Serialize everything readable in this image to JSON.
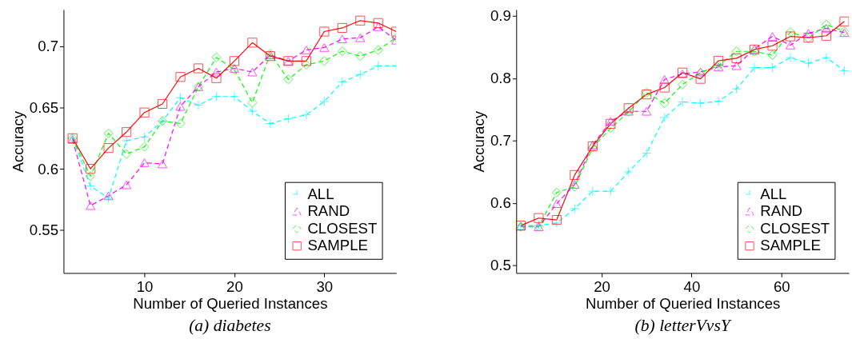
{
  "chart_data": [
    {
      "type": "line",
      "title": "(a) diabetes",
      "xlabel": "Number of Queried Instances",
      "ylabel": "Accuracy",
      "x": [
        2,
        4,
        6,
        8,
        10,
        12,
        14,
        16,
        18,
        20,
        22,
        24,
        26,
        28,
        30,
        32,
        34,
        36,
        38
      ],
      "xlim": [
        1,
        38
      ],
      "xticks": [
        10,
        20,
        30
      ],
      "ylim": [
        0.515,
        0.73
      ],
      "yticks": [
        0.55,
        0.6,
        0.65,
        0.7
      ],
      "grid": false,
      "legend": "bottom right",
      "series": [
        {
          "name": "ALL",
          "color": "#00ffff",
          "marker": "cross",
          "line_style": "dashed",
          "values": [
            0.625,
            0.586,
            0.576,
            0.623,
            0.626,
            0.639,
            0.658,
            0.652,
            0.659,
            0.659,
            0.647,
            0.637,
            0.641,
            0.644,
            0.655,
            0.671,
            0.677,
            0.684,
            0.684
          ]
        },
        {
          "name": "RAND",
          "color": "#ff00ff",
          "marker": "triangle",
          "line_style": "dashed",
          "values": [
            0.624,
            0.57,
            0.578,
            0.587,
            0.605,
            0.604,
            0.651,
            0.667,
            0.679,
            0.682,
            0.679,
            0.693,
            0.688,
            0.697,
            0.699,
            0.706,
            0.707,
            0.716,
            0.705
          ]
        },
        {
          "name": "CLOSEST",
          "color": "#00ff00",
          "marker": "diamond",
          "line_style": "dashed",
          "values": [
            0.625,
            0.594,
            0.629,
            0.612,
            0.618,
            0.639,
            0.637,
            0.667,
            0.691,
            0.681,
            0.654,
            0.694,
            0.673,
            0.685,
            0.688,
            0.696,
            0.692,
            0.697,
            0.707
          ]
        },
        {
          "name": "SAMPLE",
          "color": "#ff0000",
          "marker": "square",
          "line_style": "solid",
          "values": [
            0.625,
            0.6,
            0.617,
            0.63,
            0.646,
            0.653,
            0.675,
            0.682,
            0.674,
            0.688,
            0.703,
            0.692,
            0.688,
            0.688,
            0.712,
            0.715,
            0.721,
            0.719,
            0.712
          ]
        }
      ]
    },
    {
      "type": "line",
      "title": "(b) letterVvsY",
      "xlabel": "Number of Queried Instances",
      "ylabel": "Accuracy",
      "x": [
        2,
        6,
        10,
        14,
        18,
        22,
        26,
        30,
        34,
        38,
        42,
        46,
        50,
        54,
        58,
        62,
        66,
        70,
        74
      ],
      "xlim": [
        1,
        75
      ],
      "xticks": [
        20,
        40,
        60
      ],
      "ylim": [
        0.488,
        0.91
      ],
      "yticks": [
        0.5,
        0.6,
        0.7,
        0.8,
        0.9
      ],
      "grid": false,
      "legend": "bottom right",
      "series": [
        {
          "name": "ALL",
          "color": "#00ffff",
          "marker": "cross",
          "line_style": "dashed",
          "values": [
            0.564,
            0.564,
            0.568,
            0.591,
            0.619,
            0.619,
            0.65,
            0.68,
            0.737,
            0.762,
            0.76,
            0.763,
            0.783,
            0.817,
            0.817,
            0.833,
            0.824,
            0.833,
            0.812
          ]
        },
        {
          "name": "RAND",
          "color": "#ff00ff",
          "marker": "triangle",
          "line_style": "dashed",
          "values": [
            0.563,
            0.562,
            0.599,
            0.63,
            0.693,
            0.731,
            0.747,
            0.747,
            0.798,
            0.807,
            0.81,
            0.818,
            0.82,
            0.847,
            0.867,
            0.853,
            0.872,
            0.88,
            0.873
          ]
        },
        {
          "name": "CLOSEST",
          "color": "#00ff00",
          "marker": "diamond",
          "line_style": "dashed",
          "values": [
            0.562,
            0.562,
            0.617,
            0.626,
            0.689,
            0.72,
            0.746,
            0.777,
            0.76,
            0.79,
            0.809,
            0.82,
            0.843,
            0.843,
            0.837,
            0.874,
            0.864,
            0.886,
            0.875
          ]
        },
        {
          "name": "SAMPLE",
          "color": "#ff0000",
          "marker": "square",
          "line_style": "solid",
          "values": [
            0.564,
            0.576,
            0.573,
            0.645,
            0.691,
            0.727,
            0.752,
            0.774,
            0.785,
            0.809,
            0.799,
            0.828,
            0.832,
            0.846,
            0.852,
            0.867,
            0.865,
            0.868,
            0.891
          ]
        }
      ]
    }
  ]
}
